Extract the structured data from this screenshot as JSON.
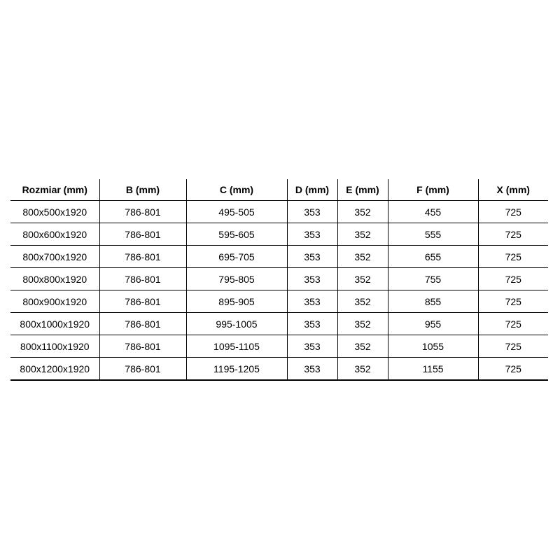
{
  "table": {
    "headers": [
      "Rozmiar (mm)",
      "B (mm)",
      "C (mm)",
      "D (mm)",
      "E (mm)",
      "F (mm)",
      "X (mm)"
    ],
    "rows": [
      [
        "800x500x1920",
        "786-801",
        "495-505",
        "353",
        "352",
        "455",
        "725"
      ],
      [
        "800x600x1920",
        "786-801",
        "595-605",
        "353",
        "352",
        "555",
        "725"
      ],
      [
        "800x700x1920",
        "786-801",
        "695-705",
        "353",
        "352",
        "655",
        "725"
      ],
      [
        "800x800x1920",
        "786-801",
        "795-805",
        "353",
        "352",
        "755",
        "725"
      ],
      [
        "800x900x1920",
        "786-801",
        "895-905",
        "353",
        "352",
        "855",
        "725"
      ],
      [
        "800x1000x1920",
        "786-801",
        "995-1005",
        "353",
        "352",
        "955",
        "725"
      ],
      [
        "800x1100x1920",
        "786-801",
        "1095-1105",
        "353",
        "352",
        "1055",
        "725"
      ],
      [
        "800x1200x1920",
        "786-801",
        "1195-1205",
        "353",
        "352",
        "1155",
        "725"
      ]
    ]
  }
}
